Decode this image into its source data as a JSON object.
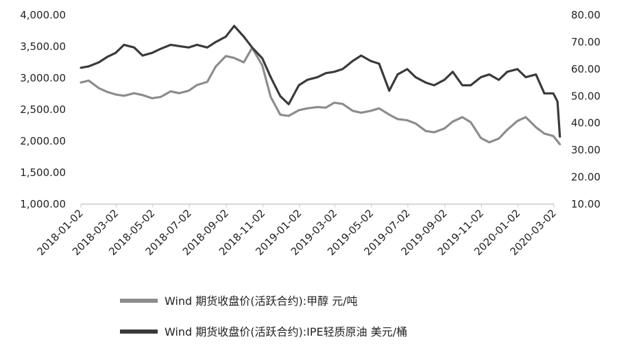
{
  "chart_data": {
    "type": "line",
    "x_ticks": [
      "2018-01-02",
      "2018-03-02",
      "2018-05-02",
      "2018-07-02",
      "2018-09-02",
      "2018-11-02",
      "2019-01-02",
      "2019-03-02",
      "2019-05-02",
      "2019-07-02",
      "2019-09-02",
      "2019-11-02",
      "2020-01-02",
      "2020-03-02"
    ],
    "y_left": {
      "ticks": [
        "1,000.00",
        "1,500.00",
        "2,000.00",
        "2,500.00",
        "3,000.00",
        "3,500.00",
        "4,000.00"
      ],
      "ylim": [
        1000,
        4000
      ]
    },
    "y_right": {
      "ticks": [
        "10.00",
        "20.00",
        "30.00",
        "40.00",
        "50.00",
        "60.00",
        "70.00",
        "80.00"
      ],
      "ylim": [
        10,
        80
      ]
    },
    "grid": false,
    "legend_position": "bottom",
    "series": [
      {
        "name": "Wind 期货收盘价(活跃合约):甲醇 元/吨",
        "axis": "left",
        "color": "#8c8c8c",
        "points": [
          [
            "2018-01-02",
            2930
          ],
          [
            "2018-01-15",
            2960
          ],
          [
            "2018-02-01",
            2840
          ],
          [
            "2018-02-15",
            2780
          ],
          [
            "2018-03-01",
            2740
          ],
          [
            "2018-03-15",
            2720
          ],
          [
            "2018-04-01",
            2760
          ],
          [
            "2018-04-15",
            2730
          ],
          [
            "2018-05-01",
            2680
          ],
          [
            "2018-05-15",
            2700
          ],
          [
            "2018-06-01",
            2790
          ],
          [
            "2018-06-15",
            2760
          ],
          [
            "2018-07-01",
            2800
          ],
          [
            "2018-07-15",
            2890
          ],
          [
            "2018-08-01",
            2940
          ],
          [
            "2018-08-15",
            3180
          ],
          [
            "2018-09-01",
            3350
          ],
          [
            "2018-09-15",
            3320
          ],
          [
            "2018-10-01",
            3250
          ],
          [
            "2018-10-15",
            3480
          ],
          [
            "2018-11-01",
            3200
          ],
          [
            "2018-11-15",
            2700
          ],
          [
            "2018-12-01",
            2420
          ],
          [
            "2018-12-15",
            2400
          ],
          [
            "2019-01-01",
            2490
          ],
          [
            "2019-01-15",
            2520
          ],
          [
            "2019-02-01",
            2540
          ],
          [
            "2019-02-15",
            2530
          ],
          [
            "2019-03-01",
            2610
          ],
          [
            "2019-03-15",
            2590
          ],
          [
            "2019-04-01",
            2480
          ],
          [
            "2019-04-15",
            2450
          ],
          [
            "2019-05-01",
            2480
          ],
          [
            "2019-05-15",
            2520
          ],
          [
            "2019-06-01",
            2420
          ],
          [
            "2019-06-15",
            2350
          ],
          [
            "2019-07-01",
            2330
          ],
          [
            "2019-07-15",
            2280
          ],
          [
            "2019-08-01",
            2160
          ],
          [
            "2019-08-15",
            2140
          ],
          [
            "2019-09-01",
            2200
          ],
          [
            "2019-09-15",
            2310
          ],
          [
            "2019-10-01",
            2380
          ],
          [
            "2019-10-15",
            2300
          ],
          [
            "2019-11-01",
            2050
          ],
          [
            "2019-11-15",
            1980
          ],
          [
            "2019-12-01",
            2040
          ],
          [
            "2019-12-15",
            2180
          ],
          [
            "2020-01-01",
            2320
          ],
          [
            "2020-01-15",
            2380
          ],
          [
            "2020-02-01",
            2220
          ],
          [
            "2020-02-15",
            2120
          ],
          [
            "2020-03-01",
            2080
          ],
          [
            "2020-03-12",
            1950
          ]
        ]
      },
      {
        "name": "Wind 期货收盘价(活跃合约):IPE轻质原油 美元/桶",
        "axis": "right",
        "color": "#3a3a3a",
        "points": [
          [
            "2018-01-02",
            60.5
          ],
          [
            "2018-01-15",
            61
          ],
          [
            "2018-02-01",
            62.5
          ],
          [
            "2018-02-15",
            64.5
          ],
          [
            "2018-03-01",
            66
          ],
          [
            "2018-03-15",
            69
          ],
          [
            "2018-04-01",
            68
          ],
          [
            "2018-04-15",
            65
          ],
          [
            "2018-05-01",
            66
          ],
          [
            "2018-05-15",
            67.5
          ],
          [
            "2018-06-01",
            69
          ],
          [
            "2018-06-15",
            68.5
          ],
          [
            "2018-07-01",
            68
          ],
          [
            "2018-07-15",
            69
          ],
          [
            "2018-08-01",
            68
          ],
          [
            "2018-08-15",
            70
          ],
          [
            "2018-09-01",
            72
          ],
          [
            "2018-09-15",
            76
          ],
          [
            "2018-10-01",
            72
          ],
          [
            "2018-10-15",
            68
          ],
          [
            "2018-11-01",
            64
          ],
          [
            "2018-11-15",
            57
          ],
          [
            "2018-12-01",
            50
          ],
          [
            "2018-12-15",
            47
          ],
          [
            "2019-01-01",
            54
          ],
          [
            "2019-01-15",
            56
          ],
          [
            "2019-02-01",
            57
          ],
          [
            "2019-02-15",
            58.5
          ],
          [
            "2019-03-01",
            59
          ],
          [
            "2019-03-15",
            60
          ],
          [
            "2019-04-01",
            63
          ],
          [
            "2019-04-15",
            65
          ],
          [
            "2019-05-01",
            63
          ],
          [
            "2019-05-15",
            62
          ],
          [
            "2019-06-01",
            52
          ],
          [
            "2019-06-15",
            58
          ],
          [
            "2019-07-01",
            60
          ],
          [
            "2019-07-15",
            57
          ],
          [
            "2019-08-01",
            55
          ],
          [
            "2019-08-15",
            54
          ],
          [
            "2019-09-01",
            56
          ],
          [
            "2019-09-15",
            59
          ],
          [
            "2019-10-01",
            54
          ],
          [
            "2019-10-15",
            54
          ],
          [
            "2019-11-01",
            57
          ],
          [
            "2019-11-15",
            58
          ],
          [
            "2019-12-01",
            56
          ],
          [
            "2019-12-15",
            59
          ],
          [
            "2020-01-01",
            60
          ],
          [
            "2020-01-15",
            57
          ],
          [
            "2020-02-01",
            58
          ],
          [
            "2020-02-15",
            51
          ],
          [
            "2020-03-01",
            51
          ],
          [
            "2020-03-08",
            48
          ],
          [
            "2020-03-12",
            35
          ]
        ]
      }
    ]
  }
}
